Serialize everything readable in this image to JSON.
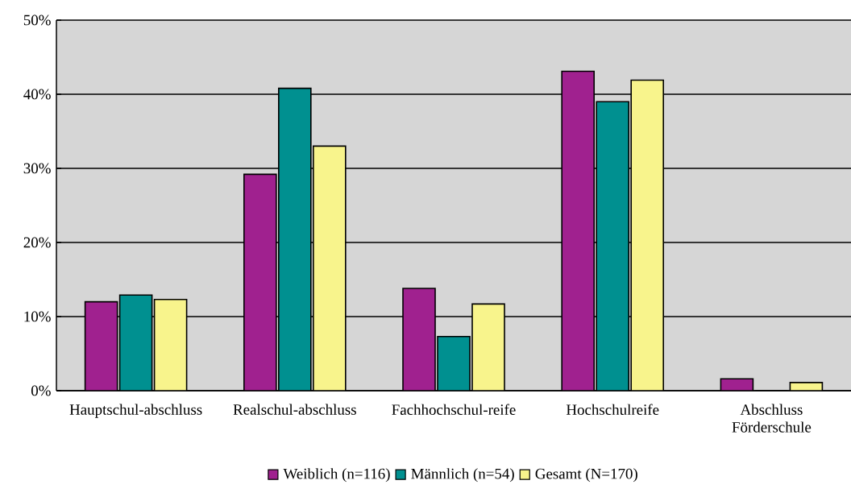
{
  "chart_data": {
    "type": "bar",
    "categories": [
      "Hauptschul-abschluss",
      "Realschul-abschluss",
      "Fachhochschul-reife",
      "Hochschulreife",
      "Abschluss Förderschule"
    ],
    "series": [
      {
        "name": "Weiblich (n=116)",
        "color": "#a0218f",
        "values": [
          12.0,
          29.2,
          13.8,
          43.1,
          1.6
        ]
      },
      {
        "name": "Männlich (n=54)",
        "color": "#009090",
        "values": [
          12.9,
          40.8,
          7.3,
          39.0,
          0
        ]
      },
      {
        "name": "Gesamt (N=170)",
        "color": "#f8f48c",
        "values": [
          12.3,
          33.0,
          11.7,
          41.9,
          1.1
        ]
      }
    ],
    "ylim": [
      0,
      50
    ],
    "yticks": [
      {
        "value": 0,
        "label": "0%"
      },
      {
        "value": 10,
        "label": "10%"
      },
      {
        "value": 20,
        "label": "20%"
      },
      {
        "value": 30,
        "label": "30%"
      },
      {
        "value": 40,
        "label": "40%"
      },
      {
        "value": 50,
        "label": "50%"
      }
    ],
    "grid": "y",
    "legend": "bottom"
  }
}
